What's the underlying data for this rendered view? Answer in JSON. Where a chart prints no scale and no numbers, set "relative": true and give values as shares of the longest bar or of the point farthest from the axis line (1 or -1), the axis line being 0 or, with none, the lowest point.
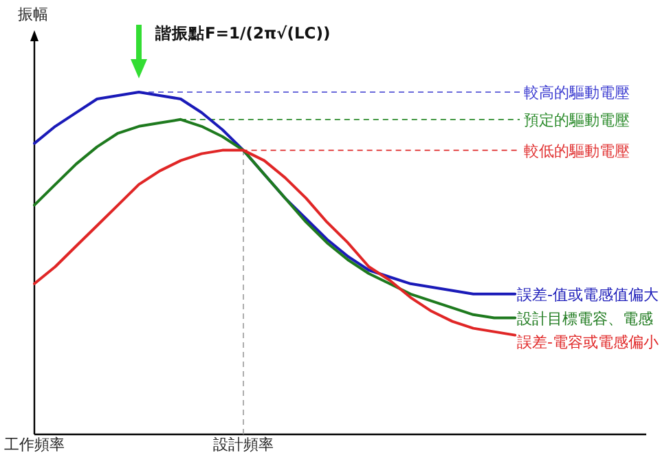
{
  "chart_data": {
    "type": "line",
    "relative": true,
    "ylabel": "振幅",
    "categories": [
      "工作頻率",
      null,
      null,
      null,
      null,
      null,
      null,
      null,
      null,
      null,
      "設計頻率",
      null,
      null,
      null,
      null,
      null,
      null,
      null,
      null,
      null,
      null,
      null,
      null,
      null
    ],
    "series": [
      {
        "name": "誤差-值或電感值偏大",
        "color": "#1a1ab8",
        "values": [
          0.85,
          0.9,
          0.94,
          0.98,
          0.99,
          1.0,
          0.99,
          0.98,
          0.94,
          0.89,
          0.83,
          0.76,
          0.69,
          0.63,
          0.57,
          0.52,
          0.48,
          0.46,
          0.44,
          0.43,
          0.42,
          0.41,
          0.41,
          0.41
        ]
      },
      {
        "name": "設計目標電容、電感",
        "color": "#1e7a1e",
        "values": [
          0.67,
          0.73,
          0.79,
          0.84,
          0.88,
          0.9,
          0.91,
          0.92,
          0.9,
          0.87,
          0.83,
          0.76,
          0.69,
          0.62,
          0.56,
          0.51,
          0.47,
          0.44,
          0.41,
          0.39,
          0.37,
          0.35,
          0.34,
          0.34
        ]
      },
      {
        "name": "誤差-電容或電感偏小",
        "color": "#e02626",
        "values": [
          0.44,
          0.49,
          0.55,
          0.61,
          0.67,
          0.73,
          0.77,
          0.8,
          0.82,
          0.83,
          0.83,
          0.8,
          0.75,
          0.69,
          0.62,
          0.56,
          0.49,
          0.45,
          0.4,
          0.36,
          0.33,
          0.31,
          0.3,
          0.29
        ]
      }
    ],
    "ref_lines": [
      {
        "axis": "y",
        "value": 1.0,
        "label": "較高的驅動電壓",
        "color": "#3a3ad0",
        "line_style": "dashed"
      },
      {
        "axis": "y",
        "value": 0.92,
        "label": "預定的驅動電壓",
        "color": "#2a8a2a",
        "line_style": "dashed"
      },
      {
        "axis": "y",
        "value": 0.83,
        "label": "較低的驅動電壓",
        "color": "#e03030",
        "line_style": "dashed"
      },
      {
        "axis": "x",
        "value": "設計頻率",
        "color": "#999999",
        "line_style": "dashed"
      }
    ],
    "annotations": [
      "諧振點F=1/(2π√(LC))"
    ]
  }
}
